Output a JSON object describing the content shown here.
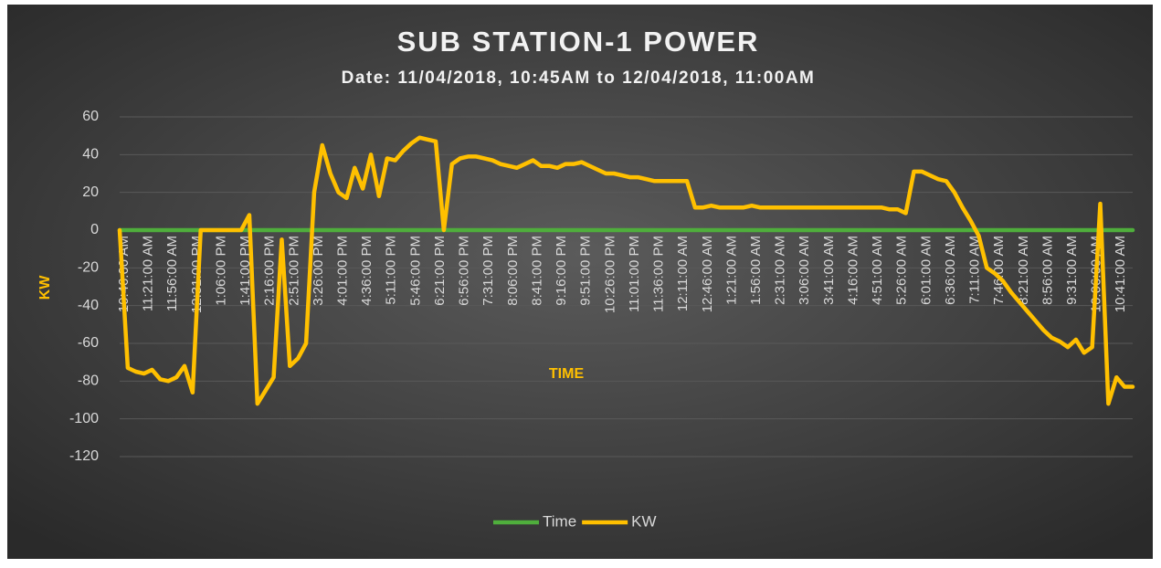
{
  "chart_data": {
    "type": "line",
    "title": "SUB STATION-1 POWER",
    "subtitle": "Date: 11/04/2018, 10:45AM to 12/04/2018, 11:00AM",
    "x_label": "TIME",
    "y_label": "KW",
    "categories": [
      "10:46:00 AM",
      null,
      null,
      "11:21:00 AM",
      null,
      null,
      "11:56:00 AM",
      null,
      null,
      "12:31:00 PM",
      null,
      null,
      "1:06:00 PM",
      null,
      null,
      "1:41:00 PM",
      null,
      null,
      "2:16:00 PM",
      null,
      null,
      "2:51:00 PM",
      null,
      null,
      "3:26:00 PM",
      null,
      null,
      "4:01:00 PM",
      null,
      null,
      "4:36:00 PM",
      null,
      null,
      "5:11:00 PM",
      null,
      null,
      "5:46:00 PM",
      null,
      null,
      "6:21:00 PM",
      null,
      null,
      "6:56:00 PM",
      null,
      null,
      "7:31:00 PM",
      null,
      null,
      "8:06:00 PM",
      null,
      null,
      "8:41:00 PM",
      null,
      null,
      "9:16:00 PM",
      null,
      null,
      "9:51:00 PM",
      null,
      null,
      "10:26:00 PM",
      null,
      null,
      "11:01:00 PM",
      null,
      null,
      "11:36:00 PM",
      null,
      null,
      "12:11:00 AM",
      null,
      null,
      "12:46:00 AM",
      null,
      null,
      "1:21:00 AM",
      null,
      null,
      "1:56:00 AM",
      null,
      null,
      "2:31:00 AM",
      null,
      null,
      "3:06:00 AM",
      null,
      null,
      "3:41:00 AM",
      null,
      null,
      "4:16:00 AM",
      null,
      null,
      "4:51:00 AM",
      null,
      null,
      "5:26:00 AM",
      null,
      null,
      "6:01:00 AM",
      null,
      null,
      "6:36:00 AM",
      null,
      null,
      "7:11:00 AM",
      null,
      null,
      "7:46:00 AM",
      null,
      null,
      "8:21:00 AM",
      null,
      null,
      "8:56:00 AM",
      null,
      null,
      "9:31:00 AM",
      null,
      null,
      "10:06:00 AM",
      null,
      null,
      "10:41:00 AM",
      null,
      null
    ],
    "series": [
      {
        "name": "Time",
        "color": "#4fae3c",
        "values": [
          0,
          0,
          0,
          0,
          0,
          0,
          0,
          0,
          0,
          0,
          0,
          0,
          0,
          0,
          0,
          0,
          0,
          0,
          0,
          0,
          0,
          0,
          0,
          0,
          0,
          0,
          0,
          0,
          0,
          0,
          0,
          0,
          0,
          0,
          0,
          0,
          0,
          0,
          0,
          0,
          0,
          0,
          0,
          0,
          0,
          0,
          0,
          0,
          0,
          0,
          0,
          0,
          0,
          0,
          0,
          0,
          0,
          0,
          0,
          0,
          0,
          0,
          0,
          0,
          0,
          0,
          0,
          0,
          0,
          0,
          0,
          0,
          0,
          0,
          0,
          0,
          0,
          0,
          0,
          0,
          0,
          0,
          0,
          0,
          0,
          0,
          0,
          0,
          0,
          0,
          0,
          0,
          0,
          0,
          0,
          0,
          0,
          0,
          0,
          0,
          0,
          0,
          0,
          0,
          0,
          0,
          0,
          0,
          0,
          0,
          0,
          0,
          0,
          0,
          0,
          0,
          0,
          0,
          0,
          0,
          0,
          0,
          0,
          0,
          0,
          0
        ]
      },
      {
        "name": "KW",
        "color": "#ffc000",
        "values": [
          0,
          -73,
          -75,
          -76,
          -74,
          -79,
          -80,
          -78,
          -72,
          -86,
          0,
          0,
          0,
          0,
          0,
          0,
          8,
          -92,
          -85,
          -78,
          -5,
          -72,
          -68,
          -60,
          20,
          45,
          30,
          20,
          17,
          33,
          22,
          40,
          18,
          38,
          37,
          42,
          46,
          49,
          48,
          47,
          0,
          35,
          38,
          39,
          39,
          38,
          37,
          35,
          34,
          33,
          35,
          37,
          34,
          34,
          33,
          35,
          35,
          36,
          34,
          32,
          30,
          30,
          29,
          28,
          28,
          27,
          26,
          26,
          26,
          26,
          26,
          12,
          12,
          13,
          12,
          12,
          12,
          12,
          13,
          12,
          12,
          12,
          12,
          12,
          12,
          12,
          12,
          12,
          12,
          12,
          12,
          12,
          12,
          12,
          12,
          11,
          11,
          9,
          31,
          31,
          29,
          27,
          26,
          20,
          12,
          5,
          -3,
          -20,
          -23,
          -27,
          -33,
          -38,
          -43,
          -48,
          -53,
          -57,
          -59,
          -62,
          -58,
          -65,
          -62,
          14,
          -92,
          -78,
          -83,
          -83
        ]
      }
    ],
    "ylim": [
      -120,
      60
    ],
    "yticks": [
      -120,
      -100,
      -80,
      -60,
      -40,
      -20,
      0,
      20,
      40,
      60
    ],
    "grid": true,
    "legend": "bottom"
  }
}
